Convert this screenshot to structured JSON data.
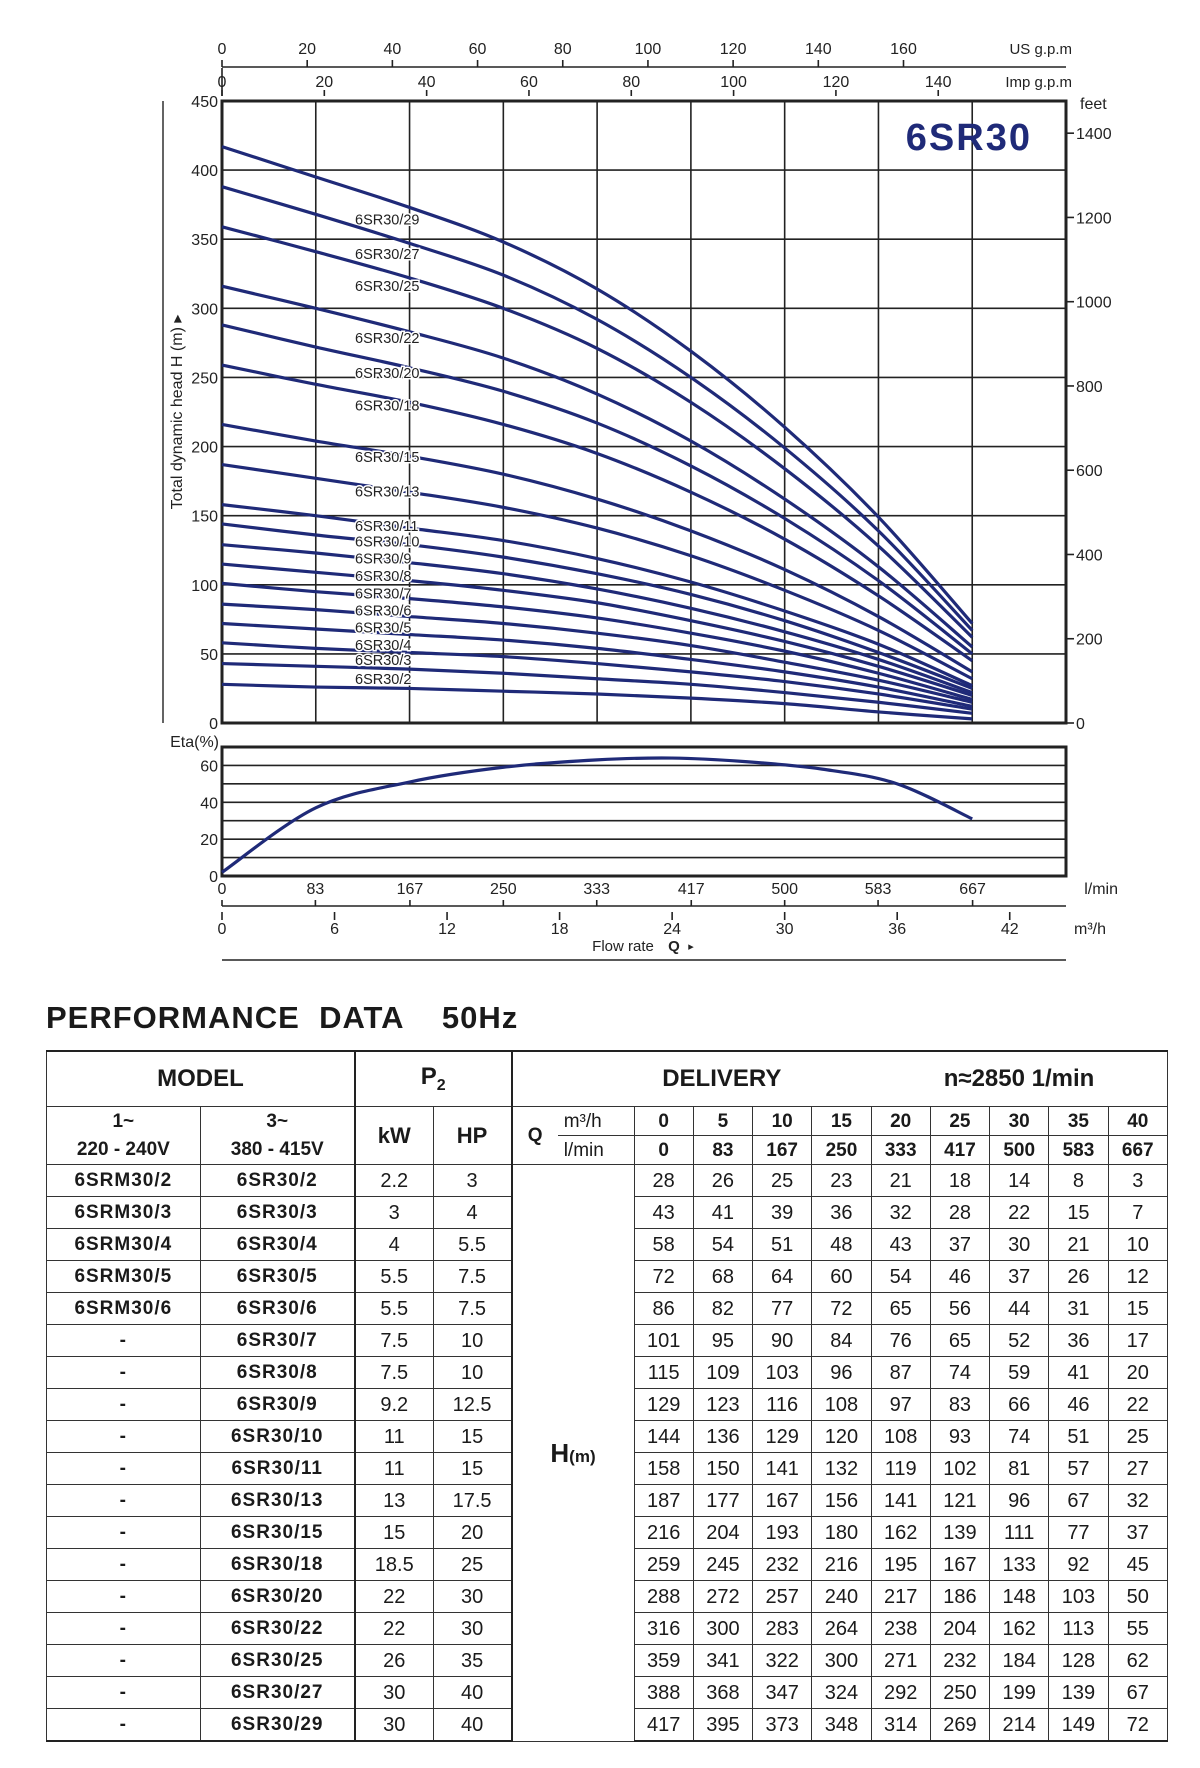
{
  "chart_data": [
    {
      "type": "line",
      "title": "6SR30",
      "ylabel": "Total dynamic head H (m)",
      "ylim": [
        0,
        450
      ],
      "y_ticks": [
        0,
        50,
        100,
        150,
        200,
        250,
        300,
        350,
        400,
        450
      ],
      "y2_label": "feet",
      "y2_ticks": [
        0,
        200,
        400,
        600,
        800,
        1000,
        1200,
        1400
      ],
      "x_top1_label": "US g.p.m",
      "x_top1_ticks": [
        0,
        20,
        40,
        60,
        80,
        100,
        120,
        140,
        160
      ],
      "x_top2_label": "Imp g.p.m",
      "x_top2_ticks": [
        0,
        20,
        40,
        60,
        80,
        100,
        120,
        140
      ],
      "x_lmin_label": "l/min",
      "x_lmin_ticks": [
        0,
        83,
        167,
        250,
        333,
        417,
        500,
        583,
        667
      ],
      "x_m3h_label": "m³/h",
      "x_m3h_ticks": [
        0,
        6,
        12,
        18,
        24,
        30,
        36,
        42
      ],
      "xlabel": "Flow rate",
      "xlabel_symbol": "Q",
      "xlim": [
        0,
        45
      ],
      "x": [
        0,
        5,
        10,
        15,
        20,
        25,
        30,
        35,
        40
      ],
      "series": [
        {
          "name": "6SR30/29",
          "values": [
            417,
            395,
            373,
            348,
            314,
            269,
            214,
            149,
            72
          ]
        },
        {
          "name": "6SR30/27",
          "values": [
            388,
            368,
            347,
            324,
            292,
            250,
            199,
            139,
            67
          ]
        },
        {
          "name": "6SR30/25",
          "values": [
            359,
            341,
            322,
            300,
            271,
            232,
            184,
            128,
            62
          ]
        },
        {
          "name": "6SR30/22",
          "values": [
            316,
            300,
            283,
            264,
            238,
            204,
            162,
            113,
            55
          ]
        },
        {
          "name": "6SR30/20",
          "values": [
            288,
            272,
            257,
            240,
            217,
            186,
            148,
            103,
            50
          ]
        },
        {
          "name": "6SR30/18",
          "values": [
            259,
            245,
            232,
            216,
            195,
            167,
            133,
            92,
            45
          ]
        },
        {
          "name": "6SR30/15",
          "values": [
            216,
            204,
            193,
            180,
            162,
            139,
            111,
            77,
            37
          ]
        },
        {
          "name": "6SR30/13",
          "values": [
            187,
            177,
            167,
            156,
            141,
            121,
            96,
            67,
            32
          ]
        },
        {
          "name": "6SR30/11",
          "values": [
            158,
            150,
            141,
            132,
            119,
            102,
            81,
            57,
            27
          ]
        },
        {
          "name": "6SR30/10",
          "values": [
            144,
            136,
            129,
            120,
            108,
            93,
            74,
            51,
            25
          ]
        },
        {
          "name": "6SR30/9",
          "values": [
            129,
            123,
            116,
            108,
            97,
            83,
            66,
            46,
            22
          ]
        },
        {
          "name": "6SR30/8",
          "values": [
            115,
            109,
            103,
            96,
            87,
            74,
            59,
            41,
            20
          ]
        },
        {
          "name": "6SR30/7",
          "values": [
            101,
            95,
            90,
            84,
            76,
            65,
            52,
            36,
            17
          ]
        },
        {
          "name": "6SR30/6",
          "values": [
            86,
            82,
            77,
            72,
            65,
            56,
            44,
            31,
            15
          ]
        },
        {
          "name": "6SR30/5",
          "values": [
            72,
            68,
            64,
            60,
            54,
            46,
            37,
            26,
            12
          ]
        },
        {
          "name": "6SR30/4",
          "values": [
            58,
            54,
            51,
            48,
            43,
            37,
            30,
            21,
            10
          ]
        },
        {
          "name": "6SR30/3",
          "values": [
            43,
            41,
            39,
            36,
            32,
            28,
            22,
            15,
            7
          ]
        },
        {
          "name": "6SR30/2",
          "values": [
            28,
            26,
            25,
            23,
            21,
            18,
            14,
            8,
            3
          ]
        }
      ],
      "grid": true,
      "line_color": "#1f2a78"
    },
    {
      "type": "line",
      "ylabel": "Eta(%)",
      "ylim": [
        0,
        70
      ],
      "y_ticks": [
        0,
        20,
        40,
        60
      ],
      "xlim": [
        0,
        45
      ],
      "x": [
        0,
        5,
        10,
        15,
        20,
        24,
        28,
        32,
        36,
        40
      ],
      "values": [
        2,
        37,
        51,
        59,
        63,
        64,
        62,
        58,
        50,
        31
      ],
      "grid": true,
      "line_color": "#1f2a78"
    }
  ],
  "table": {
    "title": "PERFORMANCE  DATA    50Hz",
    "model_header": "MODEL",
    "p2_header": "P",
    "p2_sub": "2",
    "delivery_header": "DELIVERY",
    "speed_header": "n≈2850 1/min",
    "single_phase": "1~\n220 - 240V",
    "single_phase_l1": "1~",
    "single_phase_l2": "220 - 240V",
    "three_phase_l1": "3~",
    "three_phase_l2": "380 - 415V",
    "kw_label": "kW",
    "hp_label": "HP",
    "q_label": "Q",
    "unit_m3h": "m³/h",
    "unit_lmin": "l/min",
    "h_label": "H",
    "h_unit": "(m)",
    "flow_m3h": [
      "0",
      "5",
      "10",
      "15",
      "20",
      "25",
      "30",
      "35",
      "40"
    ],
    "flow_lmin": [
      "0",
      "83",
      "167",
      "250",
      "333",
      "417",
      "500",
      "583",
      "667"
    ],
    "rows": [
      {
        "m1": "6SRM30/2",
        "m3": "6SR30/2",
        "kw": "2.2",
        "hp": "3",
        "h": [
          "28",
          "26",
          "25",
          "23",
          "21",
          "18",
          "14",
          "8",
          "3"
        ]
      },
      {
        "m1": "6SRM30/3",
        "m3": "6SR30/3",
        "kw": "3",
        "hp": "4",
        "h": [
          "43",
          "41",
          "39",
          "36",
          "32",
          "28",
          "22",
          "15",
          "7"
        ]
      },
      {
        "m1": "6SRM30/4",
        "m3": "6SR30/4",
        "kw": "4",
        "hp": "5.5",
        "h": [
          "58",
          "54",
          "51",
          "48",
          "43",
          "37",
          "30",
          "21",
          "10"
        ]
      },
      {
        "m1": "6SRM30/5",
        "m3": "6SR30/5",
        "kw": "5.5",
        "hp": "7.5",
        "h": [
          "72",
          "68",
          "64",
          "60",
          "54",
          "46",
          "37",
          "26",
          "12"
        ]
      },
      {
        "m1": "6SRM30/6",
        "m3": "6SR30/6",
        "kw": "5.5",
        "hp": "7.5",
        "h": [
          "86",
          "82",
          "77",
          "72",
          "65",
          "56",
          "44",
          "31",
          "15"
        ]
      },
      {
        "m1": "-",
        "m3": "6SR30/7",
        "kw": "7.5",
        "hp": "10",
        "h": [
          "101",
          "95",
          "90",
          "84",
          "76",
          "65",
          "52",
          "36",
          "17"
        ]
      },
      {
        "m1": "-",
        "m3": "6SR30/8",
        "kw": "7.5",
        "hp": "10",
        "h": [
          "115",
          "109",
          "103",
          "96",
          "87",
          "74",
          "59",
          "41",
          "20"
        ]
      },
      {
        "m1": "-",
        "m3": "6SR30/9",
        "kw": "9.2",
        "hp": "12.5",
        "h": [
          "129",
          "123",
          "116",
          "108",
          "97",
          "83",
          "66",
          "46",
          "22"
        ]
      },
      {
        "m1": "-",
        "m3": "6SR30/10",
        "kw": "11",
        "hp": "15",
        "h": [
          "144",
          "136",
          "129",
          "120",
          "108",
          "93",
          "74",
          "51",
          "25"
        ]
      },
      {
        "m1": "-",
        "m3": "6SR30/11",
        "kw": "11",
        "hp": "15",
        "h": [
          "158",
          "150",
          "141",
          "132",
          "119",
          "102",
          "81",
          "57",
          "27"
        ]
      },
      {
        "m1": "-",
        "m3": "6SR30/13",
        "kw": "13",
        "hp": "17.5",
        "h": [
          "187",
          "177",
          "167",
          "156",
          "141",
          "121",
          "96",
          "67",
          "32"
        ]
      },
      {
        "m1": "-",
        "m3": "6SR30/15",
        "kw": "15",
        "hp": "20",
        "h": [
          "216",
          "204",
          "193",
          "180",
          "162",
          "139",
          "111",
          "77",
          "37"
        ]
      },
      {
        "m1": "-",
        "m3": "6SR30/18",
        "kw": "18.5",
        "hp": "25",
        "h": [
          "259",
          "245",
          "232",
          "216",
          "195",
          "167",
          "133",
          "92",
          "45"
        ]
      },
      {
        "m1": "-",
        "m3": "6SR30/20",
        "kw": "22",
        "hp": "30",
        "h": [
          "288",
          "272",
          "257",
          "240",
          "217",
          "186",
          "148",
          "103",
          "50"
        ]
      },
      {
        "m1": "-",
        "m3": "6SR30/22",
        "kw": "22",
        "hp": "30",
        "h": [
          "316",
          "300",
          "283",
          "264",
          "238",
          "204",
          "162",
          "113",
          "55"
        ]
      },
      {
        "m1": "-",
        "m3": "6SR30/25",
        "kw": "26",
        "hp": "35",
        "h": [
          "359",
          "341",
          "322",
          "300",
          "271",
          "232",
          "184",
          "128",
          "62"
        ]
      },
      {
        "m1": "-",
        "m3": "6SR30/27",
        "kw": "30",
        "hp": "40",
        "h": [
          "388",
          "368",
          "347",
          "324",
          "292",
          "250",
          "199",
          "139",
          "67"
        ]
      },
      {
        "m1": "-",
        "m3": "6SR30/29",
        "kw": "30",
        "hp": "40",
        "h": [
          "417",
          "395",
          "373",
          "348",
          "314",
          "269",
          "214",
          "149",
          "72"
        ]
      }
    ]
  }
}
